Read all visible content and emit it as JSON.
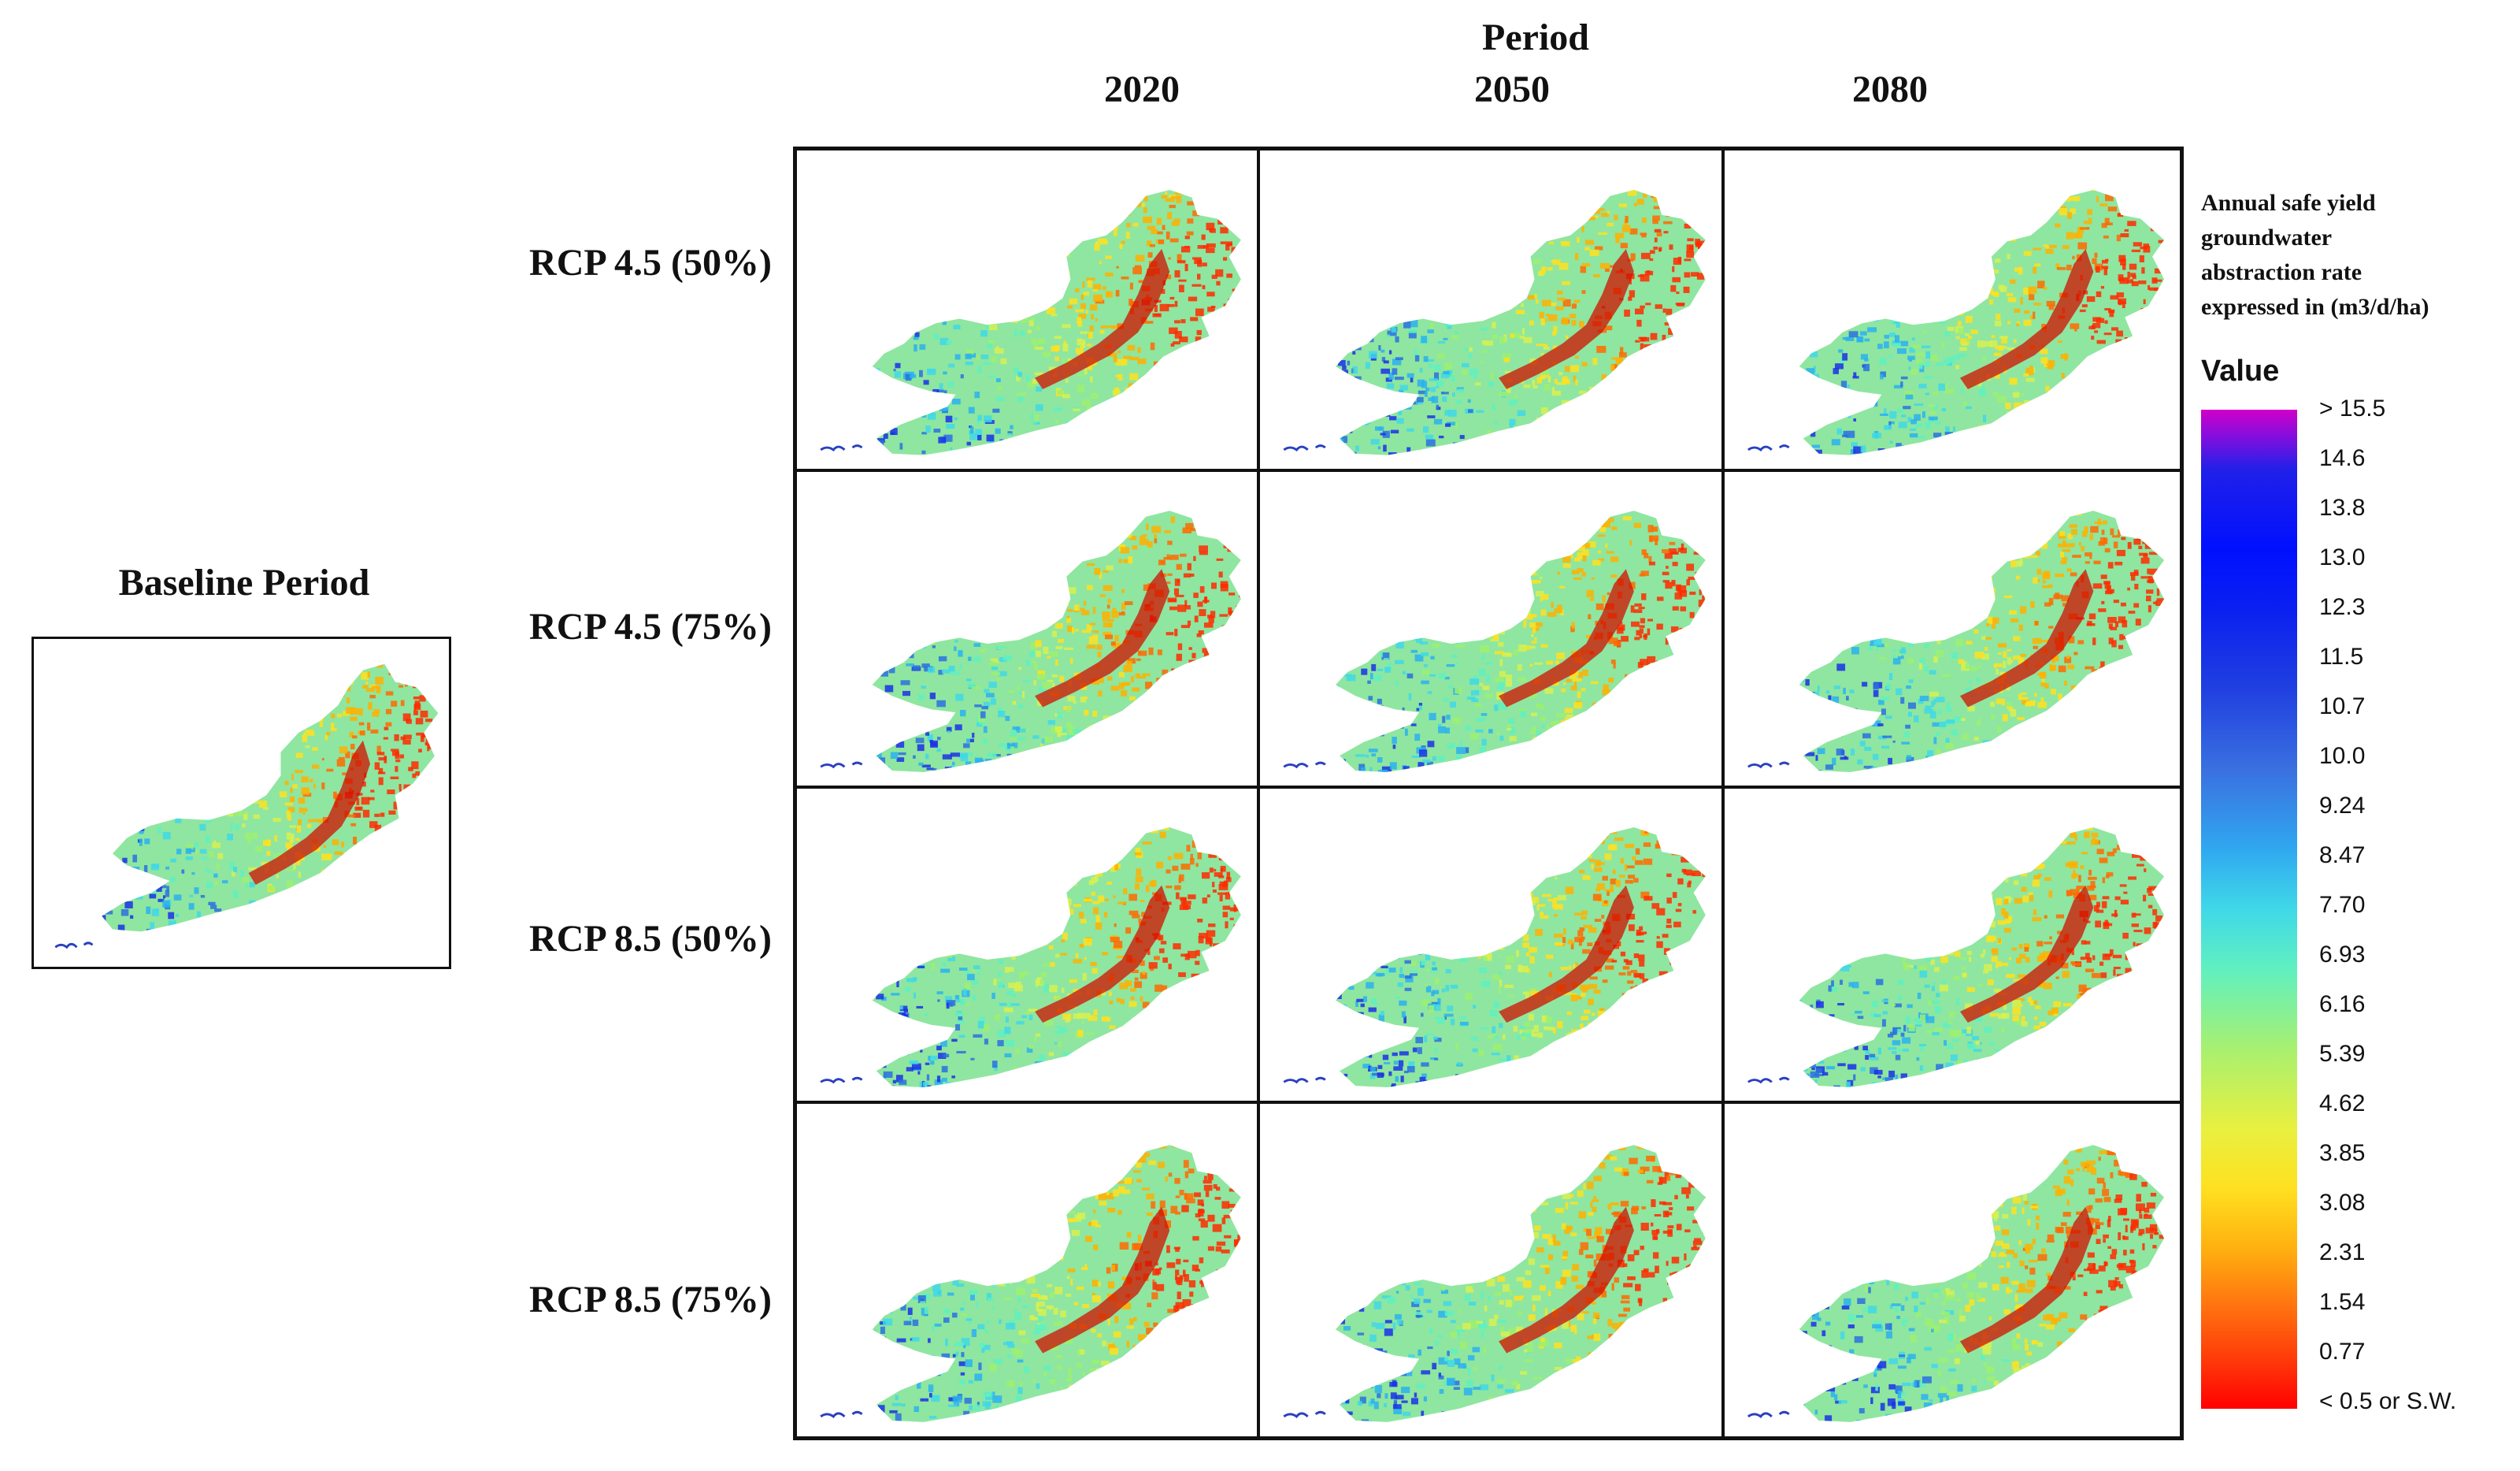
{
  "header": {
    "period_title": "Period",
    "columns": [
      "2020",
      "2050",
      "2080"
    ]
  },
  "baseline": {
    "title": "Baseline Period"
  },
  "rows": [
    "RCP 4.5 (50%)",
    "RCP 4.5 (75%)",
    "RCP 8.5 (50%)",
    "RCP 8.5 (75%)"
  ],
  "legend": {
    "title_lines": [
      "Annual safe yield",
      "groundwater",
      "abstraction rate",
      "expressed in (m3/d/ha)"
    ],
    "value_label": "Value",
    "ticks": [
      "> 15.5",
      "14.6",
      "13.8",
      "13.0",
      "12.3",
      "11.5",
      "10.7",
      "10.0",
      "9.24",
      "8.47",
      "7.70",
      "6.93",
      "6.16",
      "5.39",
      "4.62",
      "3.85",
      "3.08",
      "2.31",
      "1.54",
      "0.77",
      "< 0.5 or S.W."
    ],
    "colors": {
      "max": "#d000c8",
      "high": "#0010ff",
      "mid": "#40d8e8",
      "low": "#ffe020",
      "min": "#ff0000"
    }
  }
}
